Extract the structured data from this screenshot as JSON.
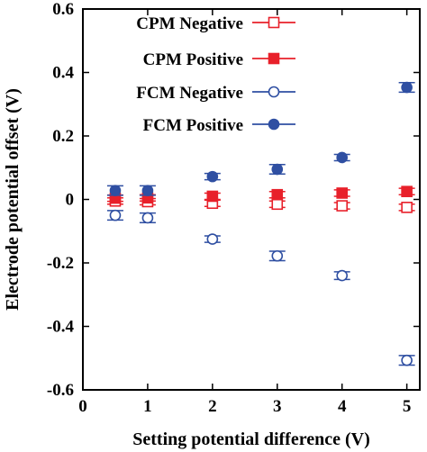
{
  "chart_data": {
    "type": "scatter",
    "title": "",
    "xlabel": "Setting potential difference (V)",
    "ylabel": "Electrode potential offset (V)",
    "xlim": [
      0,
      5.2
    ],
    "ylim": [
      -0.6,
      0.6
    ],
    "xticks": [
      "0",
      "1",
      "2",
      "3",
      "4",
      "5"
    ],
    "yticks": [
      "0.6",
      "0.4",
      "0.2",
      "0",
      "-0.2",
      "-0.4",
      "-0.6"
    ],
    "legend_position": "top-left",
    "error_bars": true,
    "series": [
      {
        "name": "CPM Negative",
        "color": "#e8202a",
        "marker": "square-open",
        "points": [
          {
            "x": 0.5,
            "y": -0.005,
            "err": 0.01
          },
          {
            "x": 1.0,
            "y": -0.007,
            "err": 0.01
          },
          {
            "x": 2.0,
            "y": -0.012,
            "err": 0.01
          },
          {
            "x": 3.0,
            "y": -0.015,
            "err": 0.01
          },
          {
            "x": 4.0,
            "y": -0.02,
            "err": 0.01
          },
          {
            "x": 5.0,
            "y": -0.025,
            "err": 0.01
          }
        ]
      },
      {
        "name": "CPM Positive",
        "color": "#e8202a",
        "marker": "square-filled",
        "points": [
          {
            "x": 0.5,
            "y": 0.004,
            "err": 0.01
          },
          {
            "x": 1.0,
            "y": 0.005,
            "err": 0.01
          },
          {
            "x": 2.0,
            "y": 0.01,
            "err": 0.01
          },
          {
            "x": 3.0,
            "y": 0.015,
            "err": 0.01
          },
          {
            "x": 4.0,
            "y": 0.02,
            "err": 0.01
          },
          {
            "x": 5.0,
            "y": 0.025,
            "err": 0.01
          }
        ]
      },
      {
        "name": "FCM Negative",
        "color": "#2f4fa2",
        "marker": "circle-open",
        "points": [
          {
            "x": 0.5,
            "y": -0.05,
            "err": 0.015
          },
          {
            "x": 1.0,
            "y": -0.058,
            "err": 0.015
          },
          {
            "x": 2.0,
            "y": -0.125,
            "err": 0.01
          },
          {
            "x": 3.0,
            "y": -0.178,
            "err": 0.015
          },
          {
            "x": 4.0,
            "y": -0.24,
            "err": 0.012
          },
          {
            "x": 5.0,
            "y": -0.507,
            "err": 0.015
          }
        ]
      },
      {
        "name": "FCM Positive",
        "color": "#2f4fa2",
        "marker": "circle-filled",
        "points": [
          {
            "x": 0.5,
            "y": 0.028,
            "err": 0.015
          },
          {
            "x": 1.0,
            "y": 0.028,
            "err": 0.015
          },
          {
            "x": 2.0,
            "y": 0.072,
            "err": 0.01
          },
          {
            "x": 3.0,
            "y": 0.095,
            "err": 0.015
          },
          {
            "x": 4.0,
            "y": 0.132,
            "err": 0.01
          },
          {
            "x": 5.0,
            "y": 0.353,
            "err": 0.015
          }
        ]
      }
    ]
  }
}
